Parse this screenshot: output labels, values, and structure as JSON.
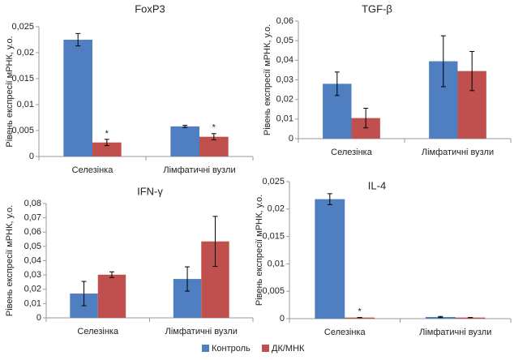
{
  "legend": [
    {
      "name": "Контроль",
      "color": "#4f7fc0"
    },
    {
      "name": "ДК/МНК",
      "color": "#c0504d"
    }
  ],
  "chart_data": [
    {
      "type": "bar",
      "title": "FoxP3",
      "ylabel": "Рівень експресії мРНК, у.о.",
      "categories": [
        "Селезінка",
        "Лімфатичні вузли"
      ],
      "series": [
        {
          "values": [
            0.0225,
            0.0058
          ],
          "errors": [
            0.0012,
            0.0002
          ],
          "annotations": [
            null,
            null
          ]
        },
        {
          "values": [
            0.0027,
            0.0038
          ],
          "errors": [
            0.0006,
            0.0006
          ],
          "annotations": [
            "*",
            "*"
          ]
        }
      ],
      "ylim": [
        0,
        0.025
      ],
      "yticks": [
        0,
        {
          "value": 0.005,
          "label": "0,005"
        },
        {
          "value": 0.01,
          "label": "0,01"
        },
        {
          "value": 0.015,
          "label": "0,015"
        },
        {
          "value": 0.02,
          "label": "0,02"
        },
        {
          "value": 0.025,
          "label": "0,025"
        }
      ]
    },
    {
      "type": "bar",
      "title": "TGF-β",
      "ylabel": "Рівень експресії мРНК, у.о.",
      "categories": [
        "Селезінка",
        "Лімфатичні вузли"
      ],
      "series": [
        {
          "values": [
            0.028,
            0.0395
          ],
          "errors": [
            0.006,
            0.013
          ],
          "annotations": [
            null,
            null
          ]
        },
        {
          "values": [
            0.0105,
            0.0345
          ],
          "errors": [
            0.005,
            0.01
          ],
          "annotations": [
            null,
            null
          ]
        }
      ],
      "ylim": [
        0,
        0.06
      ],
      "yticks": [
        0,
        {
          "value": 0.01,
          "label": "0,01"
        },
        {
          "value": 0.02,
          "label": "0,02"
        },
        {
          "value": 0.03,
          "label": "0,03"
        },
        {
          "value": 0.04,
          "label": "0,04"
        },
        {
          "value": 0.05,
          "label": "0,05"
        },
        {
          "value": 0.06,
          "label": "0,06"
        }
      ]
    },
    {
      "type": "bar",
      "title": "IFN-γ",
      "ylabel": "Рівень експресії мРНК, у.о.",
      "categories": [
        "Селезінка",
        "Лімфатичні вузли"
      ],
      "series": [
        {
          "values": [
            0.017,
            0.0272
          ],
          "errors": [
            0.0085,
            0.0085
          ],
          "annotations": [
            null,
            null
          ]
        },
        {
          "values": [
            0.0302,
            0.0535
          ],
          "errors": [
            0.002,
            0.0175
          ],
          "annotations": [
            null,
            null
          ]
        }
      ],
      "ylim": [
        0,
        0.08
      ],
      "yticks": [
        0,
        {
          "value": 0.01,
          "label": "0,01"
        },
        {
          "value": 0.02,
          "label": "0,02"
        },
        {
          "value": 0.03,
          "label": "0,03"
        },
        {
          "value": 0.04,
          "label": "0,04"
        },
        {
          "value": 0.05,
          "label": "0,05"
        },
        {
          "value": 0.06,
          "label": "0,06"
        },
        {
          "value": 0.07,
          "label": "0,07"
        },
        {
          "value": 0.08,
          "label": "0,08"
        }
      ]
    },
    {
      "type": "bar",
      "title": "IL-4",
      "ylabel": "Рівень експресії мРНК, у.о.",
      "categories": [
        "Селезінка",
        "Лімфатичні вузли"
      ],
      "series": [
        {
          "values": [
            0.0218,
            0.0003
          ],
          "errors": [
            0.001,
            0.0001
          ],
          "annotations": [
            null,
            null
          ]
        },
        {
          "values": [
            0.0002,
            0.0002
          ],
          "errors": [
            0,
            0
          ],
          "annotations": [
            "*",
            null
          ]
        }
      ],
      "ylim": [
        0,
        0.025
      ],
      "yticks": [
        0,
        {
          "value": 0.005,
          "label": "0,005"
        },
        {
          "value": 0.01,
          "label": "0,01"
        },
        {
          "value": 0.015,
          "label": "0,015"
        },
        {
          "value": 0.02,
          "label": "0,02"
        },
        {
          "value": 0.025,
          "label": "0,025"
        }
      ]
    }
  ]
}
